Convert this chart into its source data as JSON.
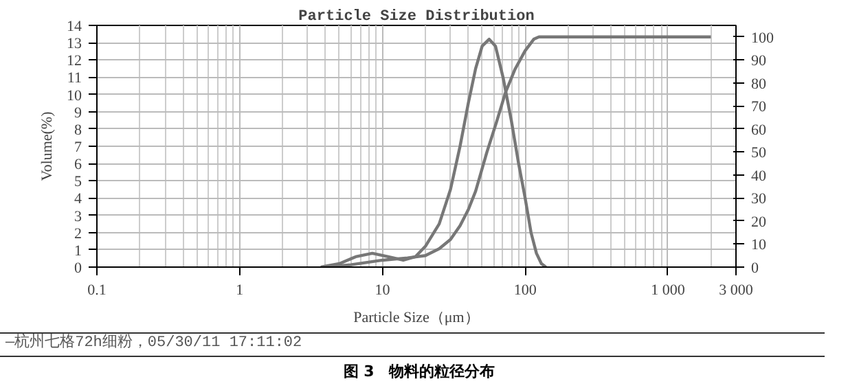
{
  "chart_data": {
    "type": "line",
    "title": "Particle Size Distribution",
    "xlabel": "Particle Size（μm）",
    "ylabel": "Volume(%)",
    "annotations": [
      "—杭州七格72h细粉，05/30/11 17:11:02",
      "图 3　物料的粒径分布"
    ],
    "log": "x",
    "grid": true,
    "xlim": [
      0.1,
      3000
    ],
    "xticks": [
      0.1,
      1,
      10,
      100,
      {
        "value": 1000,
        "label": "1 000"
      },
      {
        "value": 3000,
        "label": "3 000"
      }
    ],
    "ylim": [
      0,
      14
    ],
    "yticks": [
      0,
      1,
      2,
      3,
      4,
      5,
      6,
      7,
      8,
      9,
      10,
      11,
      12,
      13,
      14
    ],
    "y2lim": [
      0,
      105
    ],
    "y2ticks": [
      0,
      10,
      20,
      30,
      40,
      50,
      60,
      70,
      80,
      90,
      100
    ],
    "series": [
      {
        "color": "#777777",
        "x": [
          3.7,
          5,
          6.5,
          8.5,
          11,
          14,
          17,
          20,
          25,
          30,
          35,
          40,
          45,
          50,
          56,
          62,
          70,
          80,
          90,
          100,
          110,
          120,
          130,
          140
        ],
        "values": [
          0,
          0.2,
          0.6,
          0.8,
          0.6,
          0.4,
          0.6,
          1.2,
          2.5,
          4.5,
          7,
          9.5,
          11.5,
          12.8,
          13.2,
          12.8,
          11,
          8.5,
          6,
          4,
          2,
          0.8,
          0.2,
          0
        ]
      },
      {
        "color": "#777777",
        "axis": "y2",
        "x": [
          4,
          6,
          10,
          15,
          20,
          25,
          30,
          35,
          40,
          45,
          54,
          63,
          73,
          85,
          100,
          115,
          125,
          2000
        ],
        "values": [
          0,
          1,
          3,
          4,
          5,
          8,
          12,
          18,
          25,
          33,
          50,
          63,
          76,
          86,
          94,
          99,
          100,
          100
        ]
      }
    ]
  }
}
